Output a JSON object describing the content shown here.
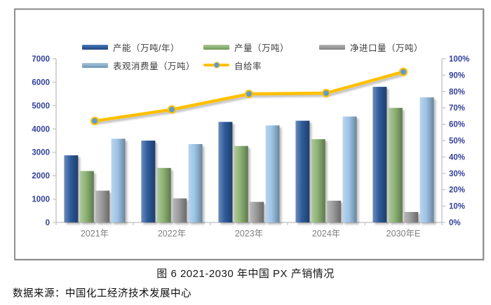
{
  "caption": "图 6  2021-2030 年中国 PX 产销情况",
  "source": "数据来源：中国化工经济技术发展中心",
  "colors": {
    "frame_border": "#8f8f8f",
    "axis_line": "#bfbfbf",
    "axis_label": "#34419b",
    "x_label": "#7f7f7f",
    "legend_text": "#3d3d3d",
    "line": "#ffc000",
    "line_marker": "#5b9bd5"
  },
  "chart_data": {
    "type": "bar",
    "title": "图 6 2021-2030 年中国 PX 产销情况",
    "categories": [
      "2021年",
      "2022年",
      "2023年",
      "2024年",
      "2030年E"
    ],
    "series": [
      {
        "name": "产能（万吨/年）",
        "type": "bar",
        "axis": "left",
        "color": "#2e5b9b",
        "values": [
          2870,
          3500,
          4300,
          4350,
          5800
        ]
      },
      {
        "name": "产量（万吨）",
        "type": "bar",
        "axis": "left",
        "color": "#8cb273",
        "values": [
          2200,
          2330,
          3270,
          3560,
          4900
        ]
      },
      {
        "name": "净进口量（万吨）",
        "type": "bar",
        "axis": "left",
        "color": "#9a9a9a",
        "values": [
          1360,
          1030,
          880,
          930,
          450
        ]
      },
      {
        "name": "表观消费量（万吨）",
        "type": "bar",
        "axis": "left",
        "color": "#9cc3e5",
        "values": [
          3580,
          3350,
          4150,
          4530,
          5350
        ]
      },
      {
        "name": "自给率",
        "type": "line",
        "axis": "right",
        "color": "#ffc000",
        "marker_color": "#5b9bd5",
        "values": [
          62,
          69,
          78.5,
          79,
          92
        ]
      }
    ],
    "left_axis": {
      "min": 0,
      "max": 7000,
      "step": 1000,
      "tick_labels": [
        "0",
        "1000",
        "2000",
        "3000",
        "4000",
        "5000",
        "6000",
        "7000"
      ]
    },
    "right_axis": {
      "min": 0,
      "max": 100,
      "step": 10,
      "tick_labels": [
        "0%",
        "10%",
        "20%",
        "30%",
        "40%",
        "50%",
        "60%",
        "70%",
        "80%",
        "90%",
        "100%"
      ]
    },
    "grid": false,
    "legend_position": "top",
    "xlabel": "",
    "ylabel_left": "万吨",
    "ylabel_right": "%"
  }
}
